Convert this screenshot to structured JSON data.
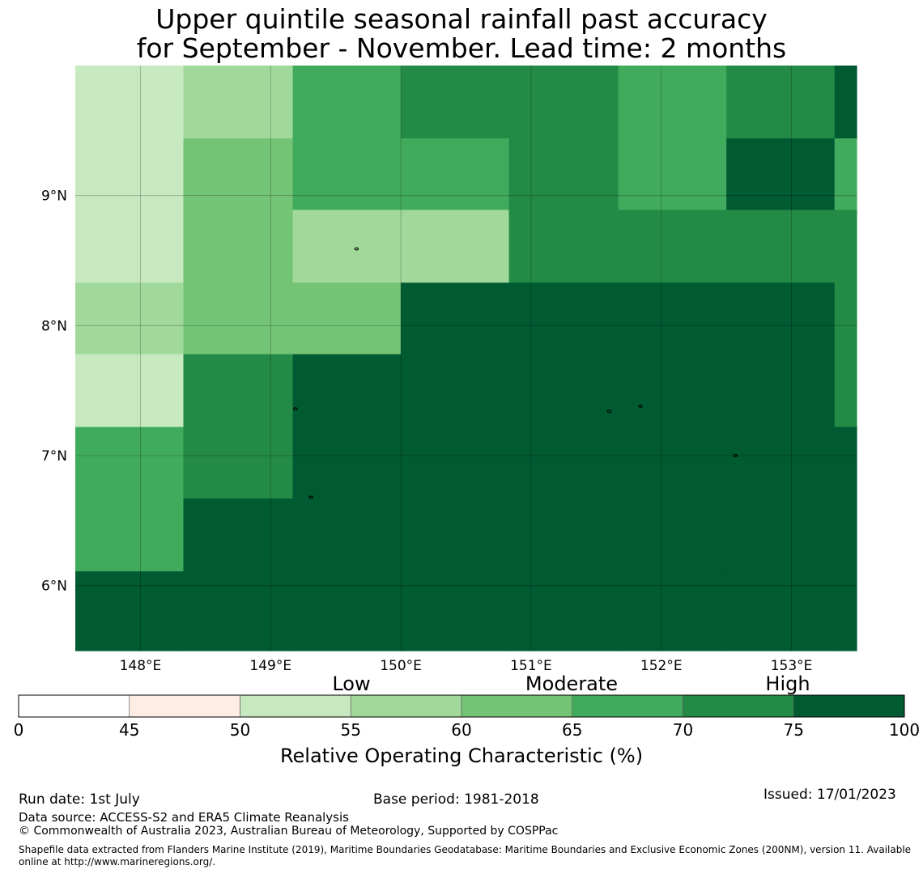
{
  "title": {
    "line1": "Upper quintile seasonal rainfall past accuracy",
    "line2": "for September - November. Lead time: 2 months"
  },
  "map": {
    "lon_range": [
      147.5,
      153.5
    ],
    "lat_range": [
      5.5,
      10.0
    ],
    "x_ticks": [
      {
        "value": 148,
        "label": "148°E"
      },
      {
        "value": 149,
        "label": "149°E"
      },
      {
        "value": 150,
        "label": "150°E"
      },
      {
        "value": 151,
        "label": "151°E"
      },
      {
        "value": 152,
        "label": "152°E"
      },
      {
        "value": 153,
        "label": "153°E"
      }
    ],
    "y_ticks": [
      {
        "value": 9,
        "label": "9°N"
      },
      {
        "value": 8,
        "label": "8°N"
      },
      {
        "value": 7,
        "label": "7°N"
      },
      {
        "value": 6,
        "label": "6°N"
      }
    ],
    "lon_edges": [
      147.5,
      148.33,
      149.17,
      150.0,
      150.83,
      151.67,
      152.5,
      153.33,
      153.5
    ],
    "lat_edges": [
      10.0,
      9.44,
      8.89,
      8.33,
      7.78,
      7.22,
      6.67,
      6.11,
      5.5
    ],
    "cell_class": [
      [
        2,
        3,
        5,
        6,
        6,
        5,
        6,
        7
      ],
      [
        2,
        4,
        5,
        5,
        6,
        5,
        7,
        5
      ],
      [
        2,
        4,
        3,
        3,
        6,
        6,
        6,
        6
      ],
      [
        3,
        4,
        4,
        7,
        7,
        7,
        7,
        6
      ],
      [
        2,
        6,
        7,
        7,
        7,
        7,
        7,
        6
      ],
      [
        5,
        6,
        7,
        7,
        7,
        7,
        7,
        7
      ],
      [
        5,
        7,
        7,
        7,
        7,
        7,
        7,
        7
      ],
      [
        7,
        7,
        7,
        7,
        7,
        7,
        7,
        7
      ]
    ],
    "islands": [
      {
        "lon": 149.66,
        "lat": 8.59
      },
      {
        "lon": 149.19,
        "lat": 7.36
      },
      {
        "lon": 149.31,
        "lat": 6.68
      },
      {
        "lon": 151.6,
        "lat": 7.34
      },
      {
        "lon": 151.84,
        "lat": 7.38
      },
      {
        "lon": 152.57,
        "lat": 7.0
      }
    ]
  },
  "colorbar": {
    "ticks": [
      "0",
      "45",
      "50",
      "55",
      "60",
      "65",
      "70",
      "75",
      "100"
    ],
    "colors": [
      "#ffffff",
      "#ffece4",
      "#c7e9c0",
      "#a1d99b",
      "#74c476",
      "#41ab5d",
      "#238b45",
      "#005a32"
    ],
    "categories": [
      "Low",
      "Moderate",
      "High"
    ],
    "label": "Relative Operating Characteristic (%)"
  },
  "footer": {
    "run_date": "Run date: 1st July",
    "base_period": "Base period: 1981-2018",
    "issued": "Issued: 17/01/2023",
    "data_source": "Data source: ACCESS-S2 and ERA5 Climate Reanalysis",
    "copyright": "© Commonwealth of Australia 2023, Australian Bureau of Meteorology, Supported by COSPPac",
    "shapefile": "Shapefile data extracted from Flanders Marine Institute (2019), Maritime Boundaries Geodatabase: Maritime Boundaries and Exclusive Economic Zones (200NM), version 11. Available online at http://www.marineregions.org/."
  }
}
